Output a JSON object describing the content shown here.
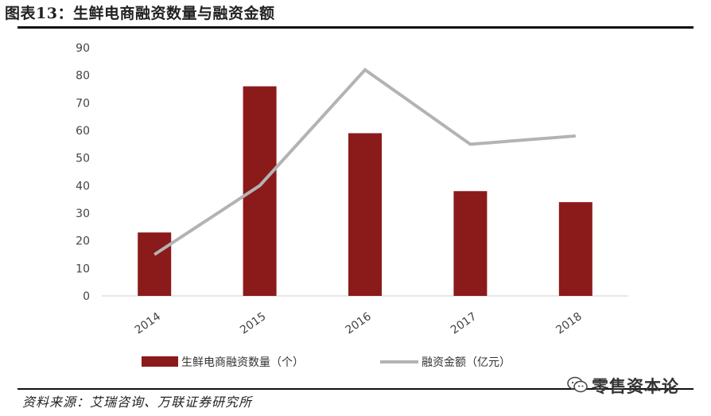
{
  "header": {
    "title": "图表13：生鲜电商融资数量与融资金额"
  },
  "chart_data": {
    "type": "bar",
    "categories": [
      "2014",
      "2015",
      "2016",
      "2017",
      "2018"
    ],
    "series": [
      {
        "name": "生鲜电商融资数量（个）",
        "type": "bar",
        "color": "#8B1A1A",
        "values": [
          23,
          76,
          59,
          38,
          34
        ]
      },
      {
        "name": "融资金额（亿元）",
        "type": "line",
        "color": "#B3B3B3",
        "values": [
          15,
          40,
          82,
          55,
          58
        ]
      }
    ],
    "ylim": [
      0,
      90
    ],
    "yticks": [
      0,
      10,
      20,
      30,
      40,
      50,
      60,
      70,
      80,
      90
    ],
    "grid": false,
    "legend": "bottom"
  },
  "footer": {
    "source": "资料来源：艾瑞咨询、万联证券研究所",
    "watermark": "零售资本论"
  }
}
